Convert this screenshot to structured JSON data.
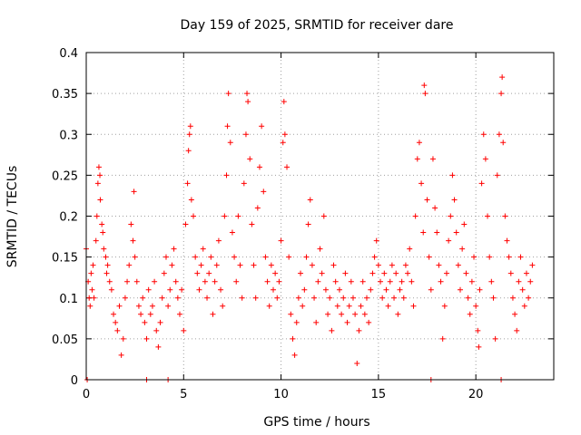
{
  "chart_data": {
    "type": "scatter",
    "title": "Day 159 of 2025, SRMTID for receiver dare",
    "xlabel": "GPS time / hours",
    "ylabel": "SRMTID / TECUs",
    "xlim": [
      0,
      24
    ],
    "ylim": [
      0,
      0.4
    ],
    "xticks": [
      0,
      5,
      10,
      15,
      20
    ],
    "xtick_labels": [
      "0",
      "5",
      "10",
      "15",
      "20"
    ],
    "yticks": [
      0,
      0.05,
      0.1,
      0.15,
      0.2,
      0.25,
      0.3,
      0.35,
      0.4
    ],
    "ytick_labels": [
      "0",
      "0.05",
      "0.1",
      "0.15",
      "0.2",
      "0.25",
      "0.3",
      "0.35",
      "0.4"
    ],
    "grid": true,
    "marker": "+",
    "color": "#ff0000",
    "series": [
      {
        "name": "SRMTID",
        "points": [
          [
            0.0,
            0.16
          ],
          [
            0.1,
            0.12
          ],
          [
            0.15,
            0.1
          ],
          [
            0.2,
            0.09
          ],
          [
            0.25,
            0.13
          ],
          [
            0.3,
            0.11
          ],
          [
            0.35,
            0.14
          ],
          [
            0.4,
            0.1
          ],
          [
            0.5,
            0.17
          ],
          [
            0.55,
            0.2
          ],
          [
            0.6,
            0.24
          ],
          [
            0.65,
            0.26
          ],
          [
            0.7,
            0.25
          ],
          [
            0.72,
            0.22
          ],
          [
            0.8,
            0.19
          ],
          [
            0.85,
            0.18
          ],
          [
            0.9,
            0.16
          ],
          [
            1.0,
            0.15
          ],
          [
            1.05,
            0.13
          ],
          [
            1.1,
            0.14
          ],
          [
            1.2,
            0.12
          ],
          [
            1.3,
            0.11
          ],
          [
            1.4,
            0.08
          ],
          [
            1.5,
            0.07
          ],
          [
            1.6,
            0.06
          ],
          [
            1.7,
            0.09
          ],
          [
            1.8,
            0.03
          ],
          [
            1.9,
            0.05
          ],
          [
            2.0,
            0.1
          ],
          [
            2.1,
            0.12
          ],
          [
            2.2,
            0.14
          ],
          [
            2.3,
            0.19
          ],
          [
            2.4,
            0.17
          ],
          [
            2.45,
            0.23
          ],
          [
            2.5,
            0.15
          ],
          [
            2.6,
            0.12
          ],
          [
            2.7,
            0.09
          ],
          [
            2.8,
            0.08
          ],
          [
            2.9,
            0.1
          ],
          [
            3.0,
            0.07
          ],
          [
            3.1,
            0.05
          ],
          [
            3.2,
            0.11
          ],
          [
            3.3,
            0.08
          ],
          [
            3.4,
            0.09
          ],
          [
            3.5,
            0.12
          ],
          [
            3.6,
            0.06
          ],
          [
            3.7,
            0.04
          ],
          [
            3.8,
            0.07
          ],
          [
            3.9,
            0.1
          ],
          [
            4.0,
            0.13
          ],
          [
            4.1,
            0.15
          ],
          [
            4.2,
            0.09
          ],
          [
            4.3,
            0.11
          ],
          [
            4.4,
            0.14
          ],
          [
            4.5,
            0.16
          ],
          [
            4.6,
            0.12
          ],
          [
            4.7,
            0.1
          ],
          [
            4.8,
            0.08
          ],
          [
            4.9,
            0.11
          ],
          [
            5.0,
            0.06
          ],
          [
            5.1,
            0.19
          ],
          [
            5.2,
            0.24
          ],
          [
            5.25,
            0.28
          ],
          [
            5.3,
            0.3
          ],
          [
            5.35,
            0.31
          ],
          [
            5.4,
            0.22
          ],
          [
            5.5,
            0.2
          ],
          [
            5.6,
            0.15
          ],
          [
            5.7,
            0.13
          ],
          [
            5.8,
            0.11
          ],
          [
            5.9,
            0.14
          ],
          [
            6.0,
            0.16
          ],
          [
            6.1,
            0.12
          ],
          [
            6.2,
            0.1
          ],
          [
            6.3,
            0.13
          ],
          [
            6.4,
            0.15
          ],
          [
            6.5,
            0.08
          ],
          [
            6.6,
            0.12
          ],
          [
            6.7,
            0.14
          ],
          [
            6.8,
            0.17
          ],
          [
            6.9,
            0.11
          ],
          [
            7.0,
            0.09
          ],
          [
            7.1,
            0.2
          ],
          [
            7.2,
            0.25
          ],
          [
            7.25,
            0.31
          ],
          [
            7.3,
            0.35
          ],
          [
            7.4,
            0.29
          ],
          [
            7.5,
            0.18
          ],
          [
            7.6,
            0.15
          ],
          [
            7.7,
            0.12
          ],
          [
            7.8,
            0.2
          ],
          [
            7.9,
            0.14
          ],
          [
            8.0,
            0.1
          ],
          [
            8.1,
            0.24
          ],
          [
            8.2,
            0.3
          ],
          [
            8.25,
            0.35
          ],
          [
            8.3,
            0.34
          ],
          [
            8.4,
            0.27
          ],
          [
            8.5,
            0.19
          ],
          [
            8.6,
            0.14
          ],
          [
            8.7,
            0.1
          ],
          [
            8.8,
            0.21
          ],
          [
            8.9,
            0.26
          ],
          [
            9.0,
            0.31
          ],
          [
            9.1,
            0.23
          ],
          [
            9.2,
            0.15
          ],
          [
            9.3,
            0.12
          ],
          [
            9.4,
            0.09
          ],
          [
            9.5,
            0.14
          ],
          [
            9.6,
            0.11
          ],
          [
            9.7,
            0.13
          ],
          [
            9.8,
            0.1
          ],
          [
            9.9,
            0.12
          ],
          [
            10.0,
            0.17
          ],
          [
            10.1,
            0.29
          ],
          [
            10.15,
            0.34
          ],
          [
            10.2,
            0.3
          ],
          [
            10.3,
            0.26
          ],
          [
            10.4,
            0.15
          ],
          [
            10.5,
            0.08
          ],
          [
            10.6,
            0.05
          ],
          [
            10.7,
            0.03
          ],
          [
            10.8,
            0.07
          ],
          [
            10.9,
            0.1
          ],
          [
            11.0,
            0.13
          ],
          [
            11.1,
            0.09
          ],
          [
            11.2,
            0.11
          ],
          [
            11.3,
            0.15
          ],
          [
            11.4,
            0.19
          ],
          [
            11.5,
            0.22
          ],
          [
            11.6,
            0.14
          ],
          [
            11.7,
            0.1
          ],
          [
            11.8,
            0.07
          ],
          [
            11.9,
            0.12
          ],
          [
            12.0,
            0.16
          ],
          [
            12.1,
            0.13
          ],
          [
            12.2,
            0.2
          ],
          [
            12.3,
            0.11
          ],
          [
            12.4,
            0.08
          ],
          [
            12.5,
            0.1
          ],
          [
            12.6,
            0.06
          ],
          [
            12.7,
            0.14
          ],
          [
            12.8,
            0.12
          ],
          [
            12.9,
            0.09
          ],
          [
            13.0,
            0.11
          ],
          [
            13.1,
            0.08
          ],
          [
            13.2,
            0.1
          ],
          [
            13.3,
            0.13
          ],
          [
            13.4,
            0.07
          ],
          [
            13.5,
            0.09
          ],
          [
            13.6,
            0.12
          ],
          [
            13.7,
            0.1
          ],
          [
            13.8,
            0.08
          ],
          [
            13.9,
            0.02
          ],
          [
            14.0,
            0.06
          ],
          [
            14.1,
            0.09
          ],
          [
            14.2,
            0.12
          ],
          [
            14.3,
            0.08
          ],
          [
            14.4,
            0.1
          ],
          [
            14.5,
            0.07
          ],
          [
            14.6,
            0.11
          ],
          [
            14.7,
            0.13
          ],
          [
            14.8,
            0.15
          ],
          [
            14.9,
            0.17
          ],
          [
            15.0,
            0.14
          ],
          [
            15.1,
            0.12
          ],
          [
            15.2,
            0.1
          ],
          [
            15.3,
            0.13
          ],
          [
            15.4,
            0.11
          ],
          [
            15.5,
            0.09
          ],
          [
            15.6,
            0.12
          ],
          [
            15.7,
            0.14
          ],
          [
            15.8,
            0.1
          ],
          [
            15.9,
            0.13
          ],
          [
            16.0,
            0.08
          ],
          [
            16.1,
            0.11
          ],
          [
            16.2,
            0.12
          ],
          [
            16.3,
            0.1
          ],
          [
            16.4,
            0.14
          ],
          [
            16.5,
            0.13
          ],
          [
            16.6,
            0.16
          ],
          [
            16.7,
            0.12
          ],
          [
            16.8,
            0.09
          ],
          [
            16.9,
            0.2
          ],
          [
            17.0,
            0.27
          ],
          [
            17.1,
            0.29
          ],
          [
            17.2,
            0.24
          ],
          [
            17.3,
            0.18
          ],
          [
            17.35,
            0.36
          ],
          [
            17.4,
            0.35
          ],
          [
            17.5,
            0.22
          ],
          [
            17.6,
            0.15
          ],
          [
            17.7,
            0.11
          ],
          [
            17.8,
            0.27
          ],
          [
            17.9,
            0.21
          ],
          [
            18.0,
            0.18
          ],
          [
            18.1,
            0.14
          ],
          [
            18.2,
            0.12
          ],
          [
            18.3,
            0.05
          ],
          [
            18.4,
            0.09
          ],
          [
            18.5,
            0.13
          ],
          [
            18.6,
            0.17
          ],
          [
            18.7,
            0.2
          ],
          [
            18.8,
            0.25
          ],
          [
            18.9,
            0.22
          ],
          [
            19.0,
            0.18
          ],
          [
            19.1,
            0.14
          ],
          [
            19.2,
            0.11
          ],
          [
            19.3,
            0.16
          ],
          [
            19.4,
            0.19
          ],
          [
            19.5,
            0.13
          ],
          [
            19.6,
            0.1
          ],
          [
            19.7,
            0.08
          ],
          [
            19.8,
            0.12
          ],
          [
            19.9,
            0.15
          ],
          [
            20.0,
            0.09
          ],
          [
            20.1,
            0.06
          ],
          [
            20.15,
            0.04
          ],
          [
            20.2,
            0.11
          ],
          [
            20.3,
            0.24
          ],
          [
            20.4,
            0.3
          ],
          [
            20.5,
            0.27
          ],
          [
            20.6,
            0.2
          ],
          [
            20.7,
            0.15
          ],
          [
            20.8,
            0.12
          ],
          [
            20.9,
            0.1
          ],
          [
            21.0,
            0.05
          ],
          [
            21.1,
            0.25
          ],
          [
            21.2,
            0.3
          ],
          [
            21.3,
            0.35
          ],
          [
            21.35,
            0.37
          ],
          [
            21.4,
            0.29
          ],
          [
            21.5,
            0.2
          ],
          [
            21.6,
            0.17
          ],
          [
            21.7,
            0.15
          ],
          [
            21.8,
            0.13
          ],
          [
            21.9,
            0.1
          ],
          [
            22.0,
            0.08
          ],
          [
            22.1,
            0.06
          ],
          [
            22.2,
            0.12
          ],
          [
            22.3,
            0.15
          ],
          [
            22.4,
            0.11
          ],
          [
            22.5,
            0.09
          ],
          [
            22.6,
            0.13
          ],
          [
            22.7,
            0.1
          ],
          [
            22.8,
            0.12
          ],
          [
            22.9,
            0.14
          ],
          [
            0.05,
            0.0
          ],
          [
            4.2,
            0.0
          ],
          [
            3.1,
            0.0
          ],
          [
            17.7,
            0.0
          ],
          [
            21.3,
            0.0
          ]
        ]
      }
    ]
  }
}
